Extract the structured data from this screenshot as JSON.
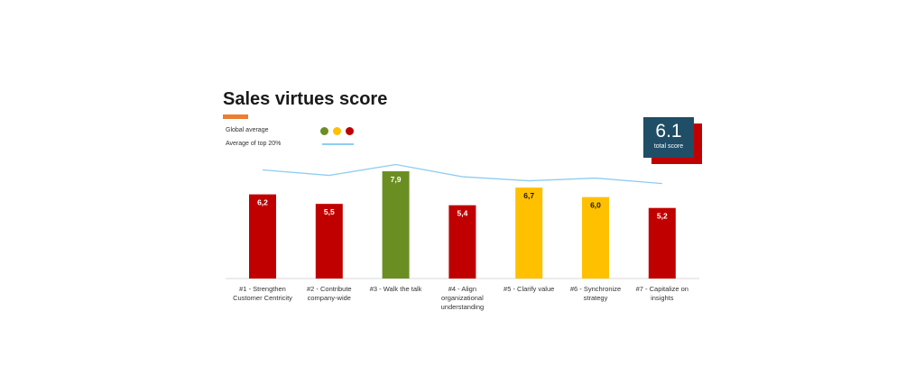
{
  "title": "Sales virtues score",
  "legend": {
    "global_average_label": "Global average",
    "top20_label": "Average of top 20%"
  },
  "score": {
    "value": "6.1",
    "label": "total score"
  },
  "colors": {
    "accent": "#ED7D31",
    "red": "#C00000",
    "yellow": "#FFC000",
    "green": "#6B8E23",
    "line": "#8ECDF0",
    "score_box": "#1F4E66",
    "score_shadow": "#C00000",
    "axis": "#D9D9D9"
  },
  "chart_data": {
    "type": "bar",
    "categories": [
      [
        "#1 - Strengthen",
        "Customer Centricity"
      ],
      [
        "#2 - Contribute",
        "company-wide"
      ],
      [
        "#3 - Walk the talk"
      ],
      [
        "#4 - Align",
        "organizational",
        "understanding"
      ],
      [
        "#5 - Clarify value"
      ],
      [
        "#6 - Synchronize",
        "strategy"
      ],
      [
        "#7 - Capitalize on",
        "insights"
      ]
    ],
    "series": [
      {
        "values": [
          6.2,
          5.5,
          7.9,
          5.4,
          6.7,
          6.0,
          5.2
        ],
        "labels": [
          "6,2",
          "5,5",
          "7,9",
          "5,4",
          "6,7",
          "6,0",
          "5,2"
        ],
        "colors": [
          "red",
          "red",
          "green",
          "red",
          "yellow",
          "yellow",
          "red"
        ]
      },
      {
        "values": [
          8.0,
          7.6,
          8.4,
          7.5,
          7.2,
          7.4,
          7.0
        ]
      }
    ],
    "ylim": [
      0,
      8.5
    ],
    "grid": false
  }
}
